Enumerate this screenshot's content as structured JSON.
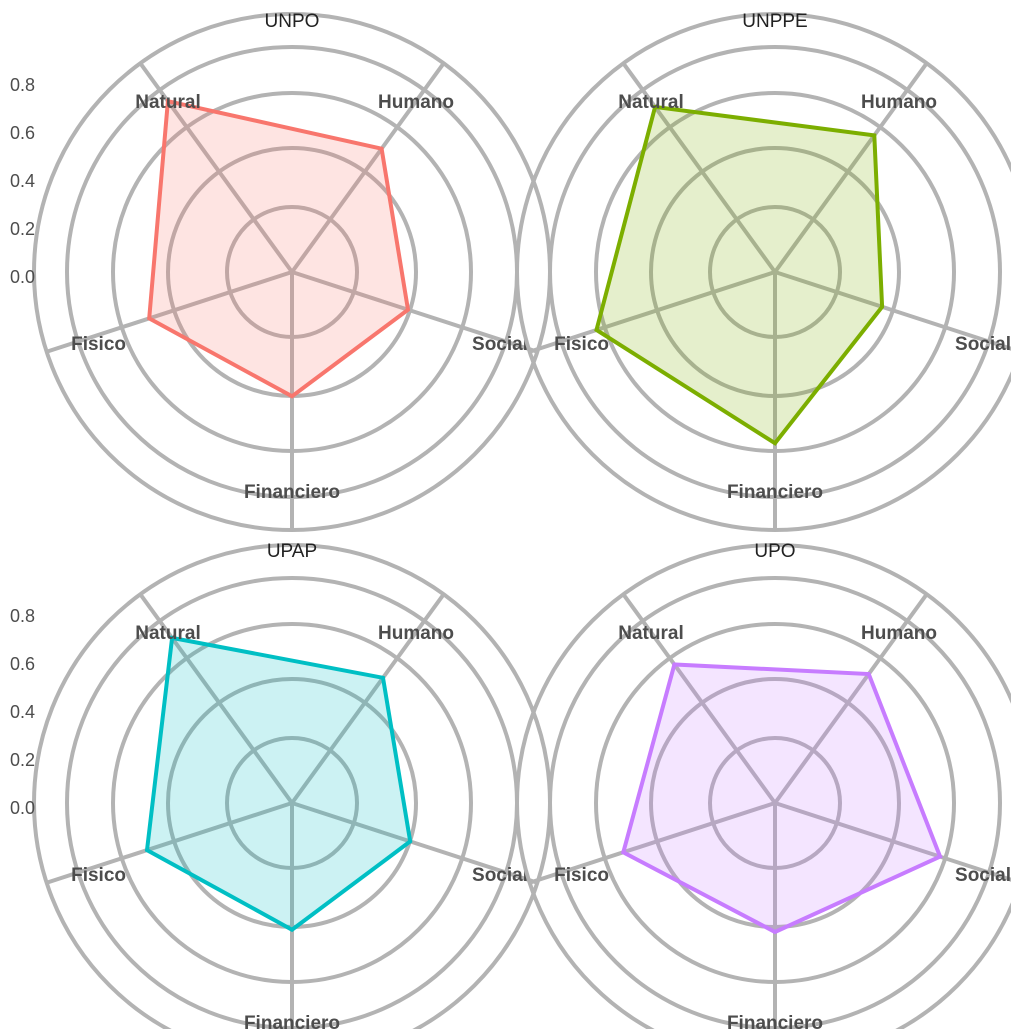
{
  "chart_data": [
    {
      "type": "radar",
      "title": "UNPO",
      "axes": [
        "Humano",
        "Social",
        "Financiero",
        "Fisico",
        "Natural"
      ],
      "ticks": [
        "0.0",
        "0.2",
        "0.4",
        "0.6",
        "0.8"
      ],
      "rlim": [
        -0.2,
        0.9
      ],
      "values": [
        0.45,
        0.32,
        0.33,
        0.44,
        0.7
      ],
      "color": "#F8766D"
    },
    {
      "type": "radar",
      "title": "UNPPE",
      "axes": [
        "Humano",
        "Social",
        "Financiero",
        "Fisico",
        "Natural"
      ],
      "ticks": [
        "0.0",
        "0.2",
        "0.4",
        "0.6",
        "0.8"
      ],
      "rlim": [
        -0.2,
        0.9
      ],
      "values": [
        0.52,
        0.28,
        0.53,
        0.6,
        0.67
      ],
      "color": "#7CAE00"
    },
    {
      "type": "radar",
      "title": "UPAP",
      "axes": [
        "Humano",
        "Social",
        "Financiero",
        "Fisico",
        "Natural"
      ],
      "ticks": [
        "0.0",
        "0.2",
        "0.4",
        "0.6",
        "0.8"
      ],
      "rlim": [
        -0.2,
        0.9
      ],
      "values": [
        0.46,
        0.33,
        0.34,
        0.45,
        0.67
      ],
      "color": "#00BFC4"
    },
    {
      "type": "radar",
      "title": "UPO",
      "axes": [
        "Humano",
        "Social",
        "Financiero",
        "Fisico",
        "Natural"
      ],
      "ticks": [
        "0.0",
        "0.2",
        "0.4",
        "0.6",
        "0.8"
      ],
      "rlim": [
        -0.2,
        0.9
      ],
      "values": [
        0.48,
        0.54,
        0.35,
        0.48,
        0.53
      ],
      "color": "#C77CFF"
    }
  ]
}
